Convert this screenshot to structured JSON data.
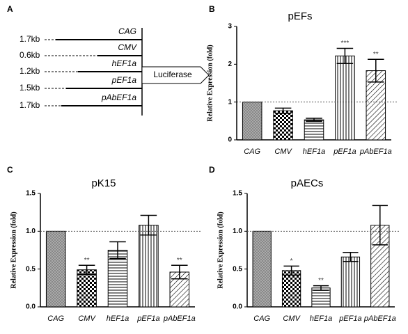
{
  "diagram": {
    "panel_label": "A",
    "rows": [
      {
        "size": "1.7kb",
        "name": "CAG"
      },
      {
        "size": "0.6kb",
        "name": "CMV"
      },
      {
        "size": "1.2kb",
        "name": "hEF1a"
      },
      {
        "size": "1.5kb",
        "name": "pEF1a"
      },
      {
        "size": "1.7kb",
        "name": "pAbEF1a"
      }
    ],
    "reporter": "Luciferase"
  },
  "chart_data": [
    {
      "type": "bar",
      "panel_label": "B",
      "title": "pEFs",
      "y_label": "Relative Expression (fold)",
      "categories": [
        "CAG",
        "CMV",
        "hEF1a",
        "pEF1a",
        "pAbEF1a"
      ],
      "values": [
        1.0,
        0.77,
        0.53,
        2.22,
        1.83
      ],
      "errors": [
        null,
        0.07,
        0.04,
        0.2,
        0.3
      ],
      "annotations": [
        null,
        null,
        null,
        "***",
        "**"
      ],
      "ylim": [
        0,
        3
      ],
      "yticks": [
        0,
        1,
        2,
        3
      ],
      "reference_line": 1
    },
    {
      "type": "bar",
      "panel_label": "C",
      "title": "pK15",
      "y_label": "Relative Expression (fold)",
      "categories": [
        "CAG",
        "CMV",
        "hEF1a",
        "pEF1a",
        "pAbEF1a"
      ],
      "values": [
        1.0,
        0.49,
        0.75,
        1.08,
        0.46
      ],
      "errors": [
        null,
        0.06,
        0.11,
        0.13,
        0.09
      ],
      "annotations": [
        null,
        "**",
        null,
        null,
        "**"
      ],
      "ylim": [
        0,
        1.5
      ],
      "yticks": [
        {
          "value": 0,
          "label": "0.0"
        },
        0.5,
        {
          "value": 1,
          "label": "1.0"
        },
        1.5
      ],
      "reference_line": 1
    },
    {
      "type": "bar",
      "panel_label": "D",
      "title": "pAECs",
      "y_label": "Relative Expression (fold)",
      "categories": [
        "CAG",
        "CMV",
        "hEF1a",
        "pEF1a",
        "pAbEF1a"
      ],
      "values": [
        1.0,
        0.48,
        0.25,
        0.66,
        1.08
      ],
      "errors": [
        null,
        0.06,
        0.03,
        0.06,
        0.26
      ],
      "annotations": [
        null,
        "*",
        "**",
        null,
        null
      ],
      "ylim": [
        0,
        1.5
      ],
      "yticks": [
        {
          "value": 0,
          "label": "0.0"
        },
        0.5,
        {
          "value": 1,
          "label": "1.0"
        },
        1.5
      ],
      "reference_line": 1
    }
  ]
}
